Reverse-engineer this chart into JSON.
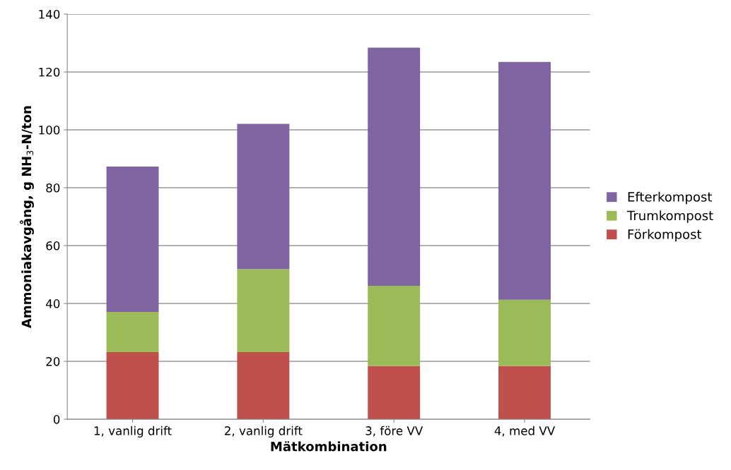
{
  "chart_data": {
    "type": "bar",
    "stacked": true,
    "xlabel": "Mätkombination",
    "ylabel": "Ammoniakavgång, g NH$_{3}$-N/ton",
    "categories": [
      "1, vanlig drift",
      "2, vanlig drift",
      "3, före VV",
      "4, med VV"
    ],
    "series": [
      {
        "name": "Förkompost",
        "color": "#c0504d",
        "values": [
          23.2,
          23.2,
          18.4,
          18.4
        ]
      },
      {
        "name": "Trumkompost",
        "color": "#9bbb59",
        "values": [
          13.9,
          28.7,
          27.7,
          22.9
        ]
      },
      {
        "name": "Efterkompost",
        "color": "#8064a2",
        "values": [
          50.2,
          50.2,
          82.3,
          82.2
        ]
      }
    ],
    "ylim": [
      0,
      140
    ],
    "yticks": [
      0,
      20,
      40,
      60,
      80,
      100,
      120,
      140
    ],
    "grid": "y",
    "legend": "right"
  }
}
